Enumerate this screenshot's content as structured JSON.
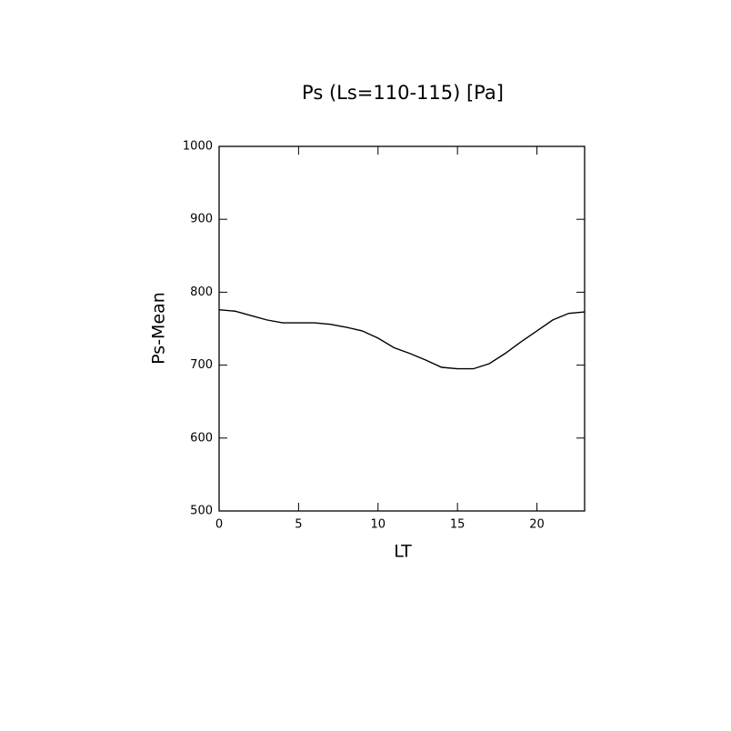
{
  "chart_data": {
    "type": "line",
    "title": "Ps (Ls=110-115) [Pa]",
    "x_label": "LT",
    "y_label": "Ps-Mean",
    "x": [
      0,
      1,
      2,
      3,
      4,
      5,
      6,
      7,
      8,
      9,
      10,
      11,
      12,
      13,
      14,
      15,
      16,
      17,
      18,
      19,
      20,
      21,
      22,
      23
    ],
    "series": [
      {
        "color": "#000000",
        "values": [
          776,
          774,
          768,
          762,
          758,
          758,
          758,
          756,
          752,
          747,
          737,
          724,
          716,
          707,
          697,
          695,
          695,
          702,
          716,
          732,
          747,
          762,
          771,
          773
        ]
      }
    ],
    "xlim": [
      0,
      23
    ],
    "xticks": [
      0,
      5,
      10,
      15,
      20
    ],
    "ylim": [
      500,
      1000
    ],
    "yticks": [
      500,
      600,
      700,
      800,
      900,
      1000
    ]
  }
}
